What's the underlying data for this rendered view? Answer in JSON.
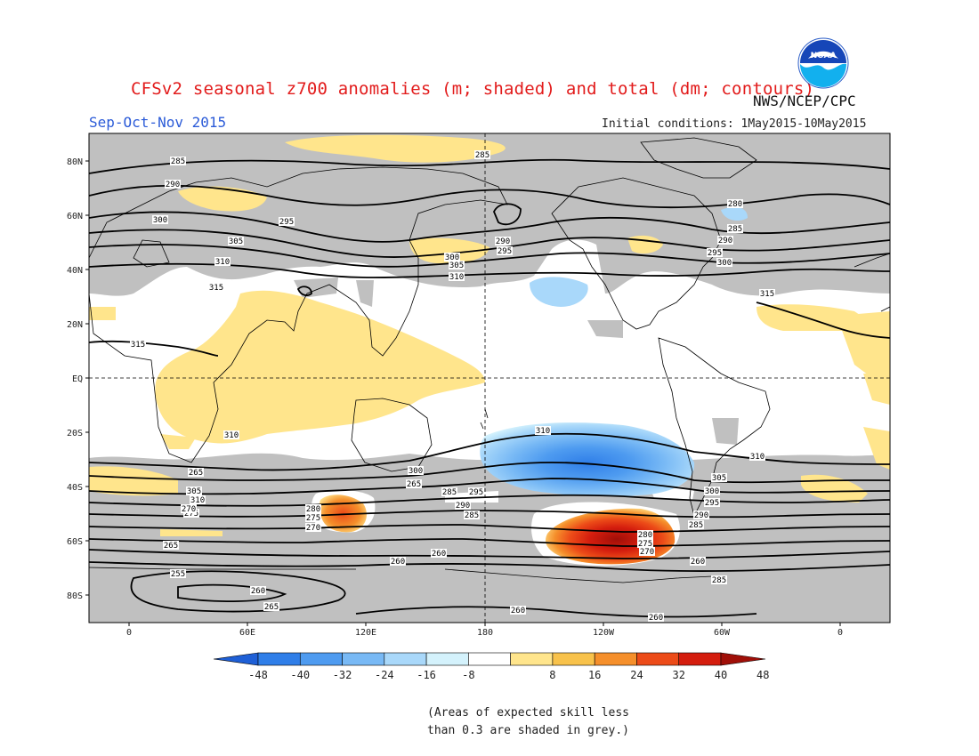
{
  "header": {
    "title": "CFSv2 seasonal z700 anomalies (m; shaded) and total (dm; contours)",
    "season": "Sep-Oct-Nov 2015",
    "agency": "NWS/NCEP/CPC",
    "initial_conditions": "Initial conditions: 1May2015-10May2015",
    "logo_text": "NOAA"
  },
  "map": {
    "lat_labels": [
      "80N",
      "60N",
      "40N",
      "20N",
      "EQ",
      "20S",
      "40S",
      "60S",
      "80S"
    ],
    "lon_labels": [
      "0",
      "60E",
      "120E",
      "180",
      "120W",
      "60W",
      "0"
    ],
    "contour_labels": [
      "285",
      "290",
      "300",
      "305",
      "310",
      "315",
      "295",
      "285",
      "290",
      "295",
      "300",
      "305",
      "310",
      "315",
      "315",
      "310",
      "310",
      "310",
      "305",
      "300",
      "295",
      "290",
      "285",
      "280",
      "275",
      "270",
      "265",
      "260",
      "255",
      "260",
      "265",
      "285",
      "280",
      "275",
      "270",
      "265",
      "260",
      "260",
      "260",
      "285",
      "290",
      "295",
      "300",
      "305",
      "310",
      "300",
      "295",
      "290",
      "285",
      "280",
      "275",
      "270",
      "265",
      "260",
      "285"
    ],
    "colors": {
      "grey_low_skill": "#c0c0c0",
      "land_outline": "#000000",
      "contour": "#000000"
    }
  },
  "colorbar": {
    "ticks": [
      "-48",
      "-40",
      "-32",
      "-24",
      "-16",
      "-8",
      "8",
      "16",
      "24",
      "32",
      "40",
      "48"
    ],
    "colors": [
      "#1e5fd6",
      "#2f7ee8",
      "#4e9bf0",
      "#78b9f5",
      "#a9d8fa",
      "#d4f2fc",
      "#ffffff",
      "#ffe58c",
      "#f8c24b",
      "#f58f2b",
      "#ec4b18",
      "#d41d0e",
      "#a00f08"
    ]
  },
  "footnote": {
    "line1": "(Areas of expected skill less",
    "line2": "than 0.3 are shaded in grey.)"
  }
}
